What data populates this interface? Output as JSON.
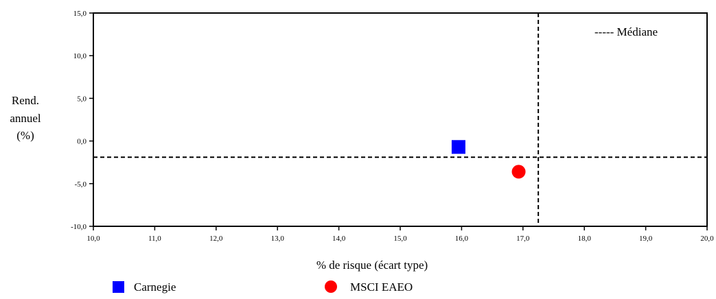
{
  "chart_data": {
    "type": "scatter",
    "title": "",
    "xlabel": "% de risque (écart type)",
    "ylabel_lines": [
      "Rend.",
      "annuel",
      "(%)"
    ],
    "xlim": [
      10,
      20
    ],
    "ylim": [
      -10,
      15
    ],
    "x_ticks": [
      10,
      11,
      12,
      13,
      14,
      15,
      16,
      17,
      18,
      19,
      20
    ],
    "y_ticks": [
      -10,
      -5,
      0,
      5,
      10,
      15
    ],
    "x_tick_labels": [
      "10,0",
      "11,0",
      "12,0",
      "13,0",
      "14,0",
      "15,0",
      "16,0",
      "17,0",
      "18,0",
      "19,0",
      "20,0"
    ],
    "y_tick_labels": [
      "-10,0",
      "-5,0",
      "0,0",
      "5,0",
      "10,0",
      "15,0"
    ],
    "grid": false,
    "median": {
      "label": "----- Médiane",
      "x": 17.25,
      "y": -1.9
    },
    "series": [
      {
        "name": "Carnegie",
        "marker": "square",
        "color": "#0000ff",
        "x": 15.95,
        "y": -0.7
      },
      {
        "name": "MSCI EAEO",
        "marker": "circle",
        "color": "#ff0000",
        "x": 16.93,
        "y": -3.6
      }
    ],
    "legend_position": "bottom"
  }
}
